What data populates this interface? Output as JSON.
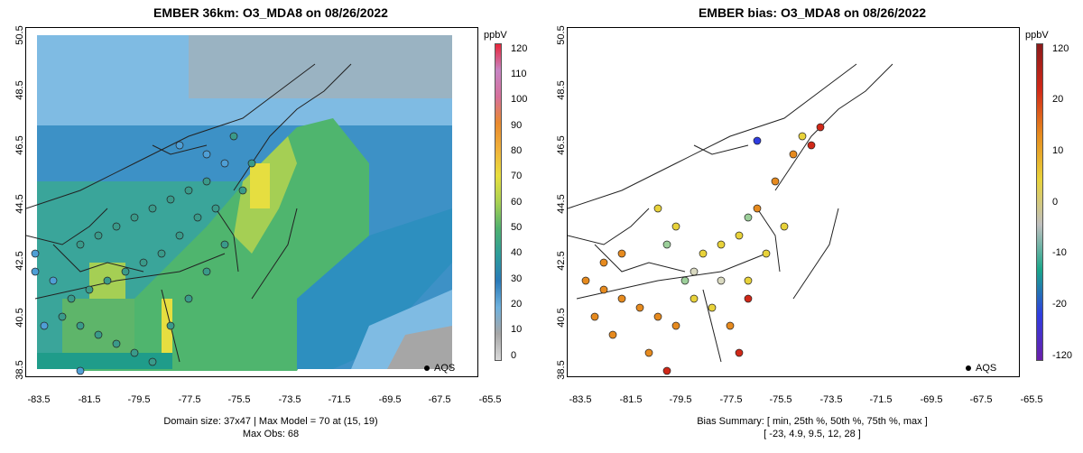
{
  "left_panel": {
    "title": "EMBER 36km: O3_MDA8 on 08/26/2022",
    "y_ticks": [
      "50.5",
      "48.5",
      "46.5",
      "44.5",
      "42.5",
      "40.5",
      "38.5"
    ],
    "x_ticks": [
      "-83.5",
      "-81.5",
      "-79.5",
      "-77.5",
      "-75.5",
      "-73.5",
      "-71.5",
      "-69.5",
      "-67.5",
      "-65.5"
    ],
    "colorbar_unit": "ppbV",
    "colorbar_ticks": [
      "120",
      "110",
      "100",
      "90",
      "80",
      "70",
      "60",
      "50",
      "40",
      "30",
      "20",
      "10",
      "0"
    ],
    "legend_label": "AQS",
    "caption_line1": "Domain size: 37x47 | Max Model = 70 at (15, 19)",
    "caption_line2": "Max Obs: 68"
  },
  "right_panel": {
    "title": "EMBER bias: O3_MDA8 on 08/26/2022",
    "y_ticks": [
      "50.5",
      "48.5",
      "46.5",
      "44.5",
      "42.5",
      "40.5",
      "38.5"
    ],
    "x_ticks": [
      "-83.5",
      "-81.5",
      "-79.5",
      "-77.5",
      "-75.5",
      "-73.5",
      "-71.5",
      "-69.5",
      "-67.5",
      "-65.5"
    ],
    "colorbar_unit": "ppbV",
    "colorbar_ticks": [
      "120",
      "20",
      "10",
      "0",
      "-10",
      "-20",
      "-120"
    ],
    "legend_label": "AQS",
    "caption_line1": "Bias Summary: [ min, 25th %, 50th %, 75th %, max ]",
    "caption_line2": "[ -23,   4.9,   9.5,   12,   28 ]"
  },
  "colors": {
    "conc_scale": [
      "#d9d9d9",
      "#a6a6a6",
      "#6fb1dd",
      "#2a7ab8",
      "#2d9c9a",
      "#4fb06f",
      "#a9d152",
      "#e8df3e",
      "#f0b13a",
      "#e98a2e",
      "#d6709b",
      "#c785c4",
      "#e8263a"
    ],
    "bias_scale": [
      "#6a1fa8",
      "#2f3de0",
      "#1aa68a",
      "#bfbfbf",
      "#e8d23a",
      "#e68a1e",
      "#d02818",
      "#8b1a1a"
    ]
  },
  "chart_data": {
    "type": "map",
    "extent": {
      "lon": [
        -84.3,
        -65.2
      ],
      "lat": [
        38.5,
        50.5
      ]
    },
    "variable": "O3_MDA8",
    "units": "ppbV",
    "max_model": 70,
    "max_model_location": [
      15,
      19
    ],
    "max_obs": 68,
    "bias_summary": {
      "min": -23,
      "p25": 4.9,
      "p50": 9.5,
      "p75": 12,
      "max": 28
    }
  }
}
